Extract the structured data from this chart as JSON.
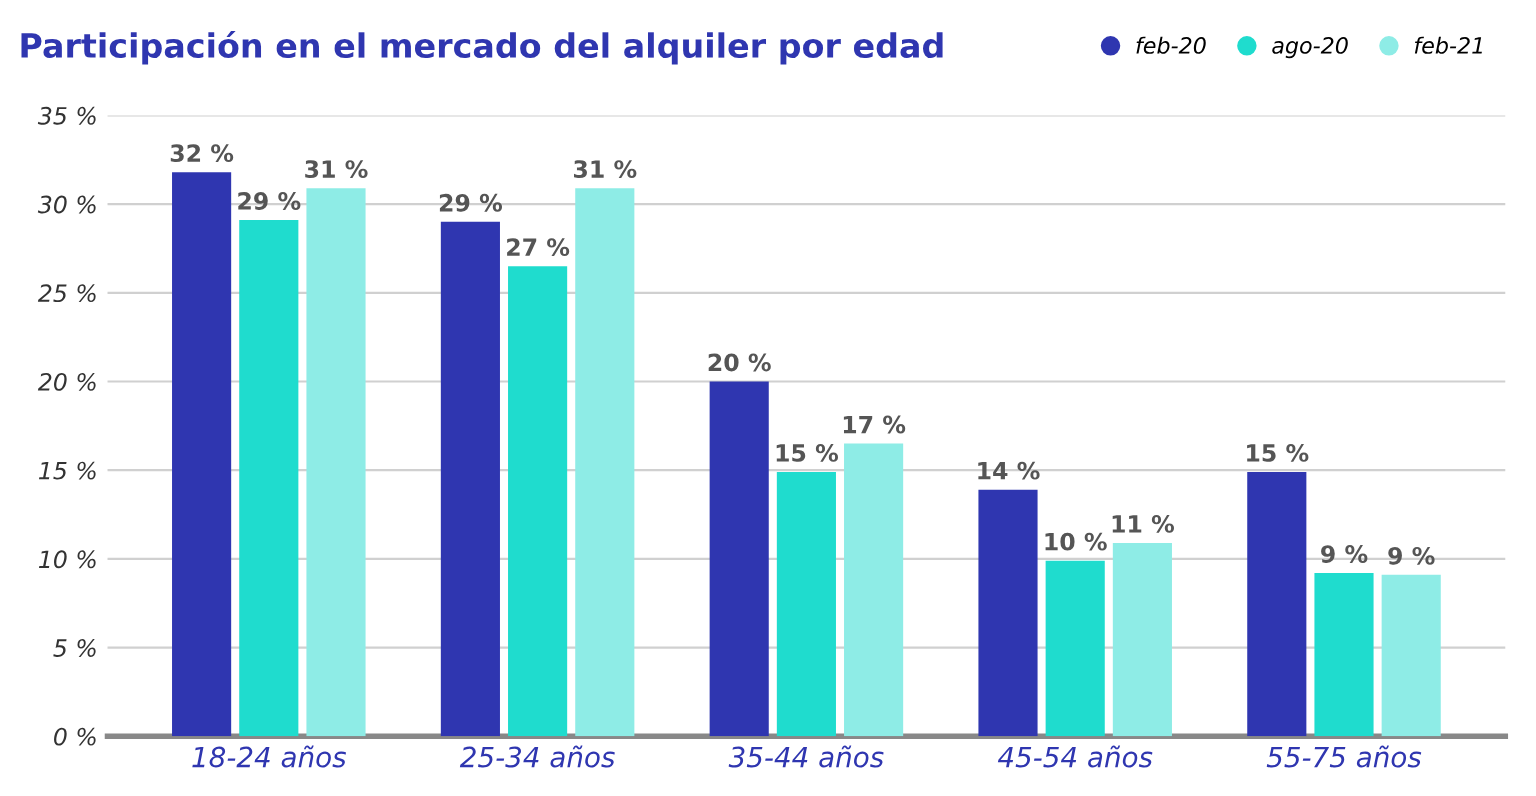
{
  "chart_data": {
    "type": "bar",
    "title": "Participación en el mercado del alquiler por edad",
    "categories": [
      "18-24 años",
      "25-34 años",
      "35-44 años",
      "45-54 años",
      "55-75 años"
    ],
    "series": [
      {
        "name": "feb-20",
        "color": "#2f36b0",
        "values": [
          31.8,
          29.0,
          20.0,
          13.9,
          14.9
        ],
        "value_labels": [
          "32 %",
          "29 %",
          "20 %",
          "14 %",
          "15 %"
        ]
      },
      {
        "name": "ago-20",
        "color": "#1fdcce",
        "values": [
          29.1,
          26.5,
          14.9,
          9.9,
          9.2
        ],
        "value_labels": [
          "29 %",
          "27 %",
          "15 %",
          "10 %",
          "9 %"
        ]
      },
      {
        "name": "feb-21",
        "color": "#8eece6",
        "values": [
          30.9,
          30.9,
          16.5,
          10.9,
          9.1
        ],
        "value_labels": [
          "31 %",
          "31 %",
          "17 %",
          "11 %",
          "9 %"
        ]
      }
    ],
    "ylim": [
      0,
      35
    ],
    "yticks": [
      {
        "value": 0,
        "label": "0 %"
      },
      {
        "value": 5,
        "label": "5 %"
      },
      {
        "value": 10,
        "label": "10 %"
      },
      {
        "value": 15,
        "label": "15 %"
      },
      {
        "value": 20,
        "label": "20 %"
      },
      {
        "value": 25,
        "label": "25 %"
      },
      {
        "value": 30,
        "label": "30 %"
      },
      {
        "value": 35,
        "label": "35 %"
      }
    ],
    "grid": "y",
    "legend": "top right"
  }
}
